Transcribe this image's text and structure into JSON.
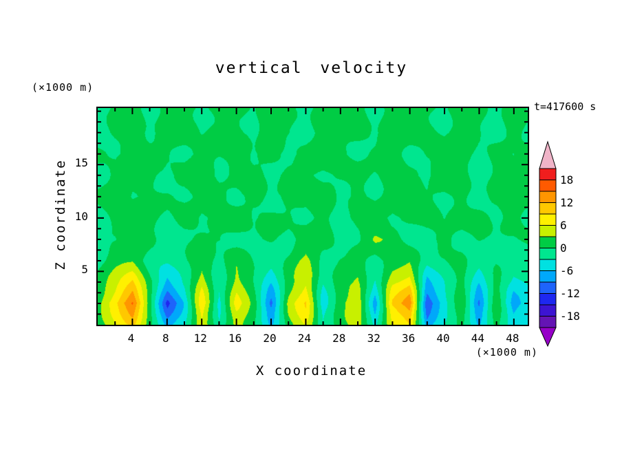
{
  "title": "vertical velocity",
  "time_label": "t=417600 s",
  "y_axis": {
    "label": "Z coordinate",
    "unit_label": "(×1000 m)",
    "ticks_major": [
      5,
      10,
      15
    ],
    "minor_step": 1,
    "range": [
      0,
      20.3
    ]
  },
  "x_axis": {
    "label": "X coordinate",
    "unit_label": "(×1000 m)",
    "ticks_major": [
      4,
      8,
      12,
      16,
      20,
      24,
      28,
      32,
      36,
      40,
      44,
      48
    ],
    "minor_step": 2,
    "range": [
      0,
      49.6
    ]
  },
  "colorbar": {
    "labels": [
      18,
      12,
      6,
      0,
      -6,
      -12,
      -18
    ],
    "top_arrow_color": "#f0b4c8",
    "bottom_arrow_color": "#9600c8",
    "box_colors_top_to_bottom": [
      "#f01e1e",
      "#ff5a00",
      "#ff9600",
      "#ffc800",
      "#fff000",
      "#c8f000",
      "#00cc44",
      "#00e68f",
      "#00e1e1",
      "#00a8fa",
      "#1e64fa",
      "#1e28f0",
      "#3c14d2",
      "#6414b4"
    ]
  },
  "chart_data": {
    "type": "heatmap",
    "title": "vertical velocity",
    "xlabel": "X coordinate (×1000 m)",
    "ylabel": "Z coordinate (×1000 m)",
    "annotation": "t=417600 s",
    "legend_position": "right",
    "grid": false,
    "contour_interval": 3,
    "levels_min": -21,
    "levels_max": 21,
    "palette_low_to_high": [
      "#6414b4",
      "#3c14d2",
      "#1e28f0",
      "#1e64fa",
      "#00a8fa",
      "#00e1e1",
      "#00e68f",
      "#00cc44",
      "#c8f000",
      "#fff000",
      "#ffc800",
      "#ff9600",
      "#ff5a00",
      "#f01e1e"
    ],
    "below_min_color": "#9600c8",
    "above_max_color": "#f0b4c8",
    "x": [
      0,
      2,
      4,
      6,
      8,
      10,
      12,
      14,
      16,
      18,
      20,
      22,
      24,
      26,
      28,
      30,
      32,
      34,
      36,
      38,
      40,
      42,
      44,
      46,
      48,
      50
    ],
    "z": [
      0,
      2,
      4,
      6,
      8,
      10,
      12,
      14,
      16,
      18
    ],
    "values_rows_bottom_to_top": [
      [
        1,
        5,
        10,
        1,
        -8,
        -4,
        6,
        -2,
        4,
        1,
        -6,
        2,
        6,
        -3,
        2,
        4,
        -5,
        6,
        9,
        -8,
        -3,
        2,
        -6,
        1,
        -5,
        -2
      ],
      [
        2,
        8,
        16,
        2,
        -13,
        -6,
        9,
        -4,
        7,
        1,
        -10,
        4,
        9,
        -5,
        3,
        6,
        -8,
        10,
        15,
        -12,
        -5,
        3,
        -10,
        2,
        -8,
        -3
      ],
      [
        1,
        4,
        9,
        1,
        -7,
        -3,
        5,
        -2,
        4,
        0,
        -5,
        2,
        5,
        -3,
        2,
        3,
        -4,
        5,
        8,
        -7,
        -3,
        2,
        -5,
        1,
        -4,
        -2
      ],
      [
        -1,
        2,
        3,
        -1,
        -2,
        -1,
        2,
        -1,
        2,
        -1,
        -2,
        1,
        4,
        -1,
        1,
        2,
        -2,
        2,
        3,
        -2,
        -1,
        1,
        -2,
        -1,
        -2,
        -1
      ],
      [
        -1,
        -1,
        2,
        1,
        -1,
        -1,
        1,
        1,
        -1,
        -1,
        1,
        -1,
        1,
        1,
        -1,
        -1,
        3,
        2,
        -1,
        -1,
        1,
        -1,
        1,
        -1,
        -1,
        1
      ],
      [
        -1,
        1,
        1,
        2,
        -1,
        1,
        -1,
        1,
        2,
        -1,
        1,
        1,
        -1,
        1,
        -1,
        2,
        1,
        -1,
        1,
        1,
        -1,
        1,
        2,
        -1,
        1,
        -1
      ],
      [
        1,
        2,
        -1,
        1,
        1,
        -1,
        1,
        2,
        -1,
        1,
        -1,
        1,
        1,
        2,
        -1,
        1,
        -1,
        1,
        2,
        1,
        -1,
        1,
        -1,
        1,
        2,
        1
      ],
      [
        -1,
        1,
        2,
        1,
        -1,
        1,
        2,
        -1,
        1,
        1,
        -1,
        2,
        1,
        -1,
        1,
        2,
        -1,
        1,
        1,
        -1,
        2,
        1,
        -1,
        1,
        1,
        2
      ],
      [
        1,
        -1,
        1,
        2,
        1,
        -1,
        1,
        1,
        2,
        -1,
        1,
        -1,
        1,
        2,
        1,
        -1,
        1,
        2,
        -1,
        1,
        1,
        2,
        -1,
        1,
        -1,
        1
      ],
      [
        -1,
        1,
        1,
        -1,
        2,
        1,
        -1,
        1,
        1,
        -1,
        2,
        1,
        -1,
        1,
        1,
        2,
        -1,
        1,
        2,
        1,
        -1,
        1,
        1,
        -1,
        1,
        -1
      ]
    ]
  }
}
